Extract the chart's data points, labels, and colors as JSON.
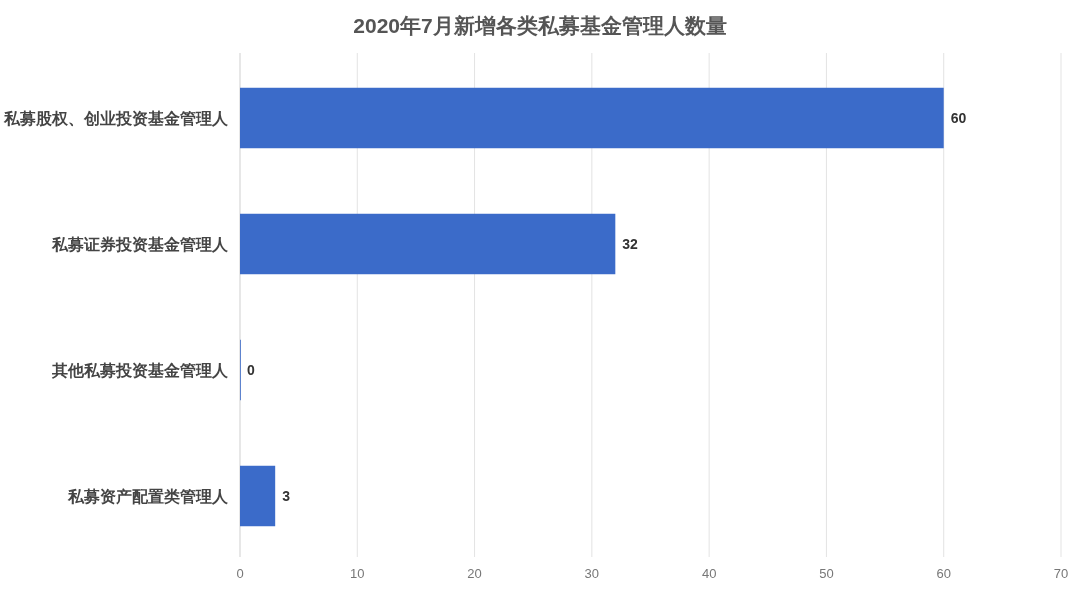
{
  "chart_data": {
    "type": "bar",
    "orientation": "horizontal",
    "title": "2020年7月新增各类私募基金管理人数量",
    "categories": [
      "私募股权、创业投资基金管理人",
      "私募证券投资基金管理人",
      "其他私募投资基金管理人",
      "私募资产配置类管理人"
    ],
    "values": [
      60,
      32,
      0,
      3
    ],
    "color": "#3b6bc9",
    "xlim": [
      0,
      70
    ],
    "xticks": [
      0,
      10,
      20,
      30,
      40,
      50,
      60,
      70
    ],
    "grid": "x",
    "data_labels": true
  }
}
